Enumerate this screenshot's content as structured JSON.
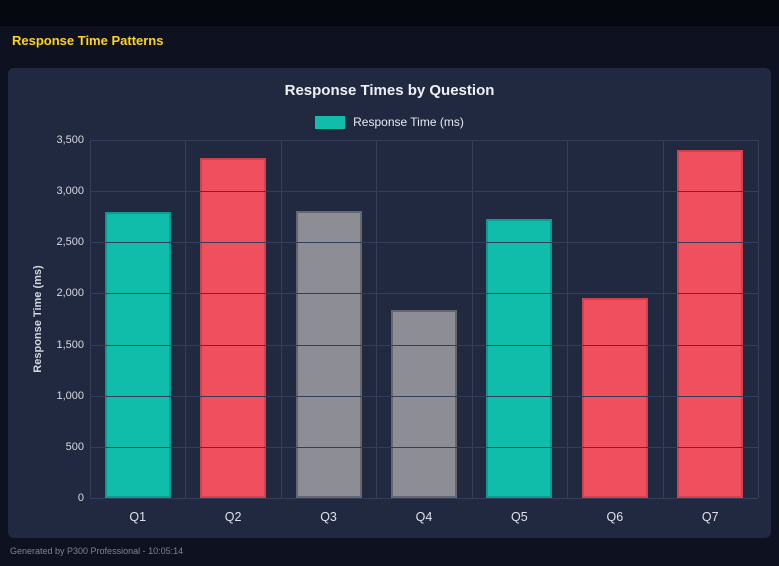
{
  "page": {
    "title": "Response Time Patterns",
    "footer": "Generated by P300 Professional - 10:05:14"
  },
  "colors": {
    "background": "#0e1220",
    "topbar": "#06080f",
    "panel": "#212941",
    "grid": "#343d5a",
    "title_yellow": "#ffd31a",
    "teal": "#10bdab",
    "red": "#f04f5e",
    "gray": "#8d8d95"
  },
  "chart_data": {
    "type": "bar",
    "title": "Response Times by Question",
    "ylabel": "Response Time (ms)",
    "legend_position": "top",
    "legend": [
      {
        "label": "Response Time (ms)",
        "color": "#10bdab"
      }
    ],
    "categories": [
      "Q1",
      "Q2",
      "Q3",
      "Q4",
      "Q5",
      "Q6",
      "Q7"
    ],
    "series": [
      {
        "name": "Response Time (ms)",
        "values": [
          2800,
          3325,
          2810,
          1840,
          2730,
          1960,
          3400
        ]
      }
    ],
    "bar_colors": [
      "#10bdab",
      "#f04f5e",
      "#8d8d95",
      "#8d8d95",
      "#10bdab",
      "#f04f5e",
      "#f04f5e"
    ],
    "bar_border_colors": [
      "#0c9c8d",
      "#cf4351",
      "#66666e",
      "#66666e",
      "#0c9c8d",
      "#cf4351",
      "#cf4351"
    ],
    "ylim": [
      0,
      3500
    ],
    "ytick_step": 500,
    "grid": true
  }
}
